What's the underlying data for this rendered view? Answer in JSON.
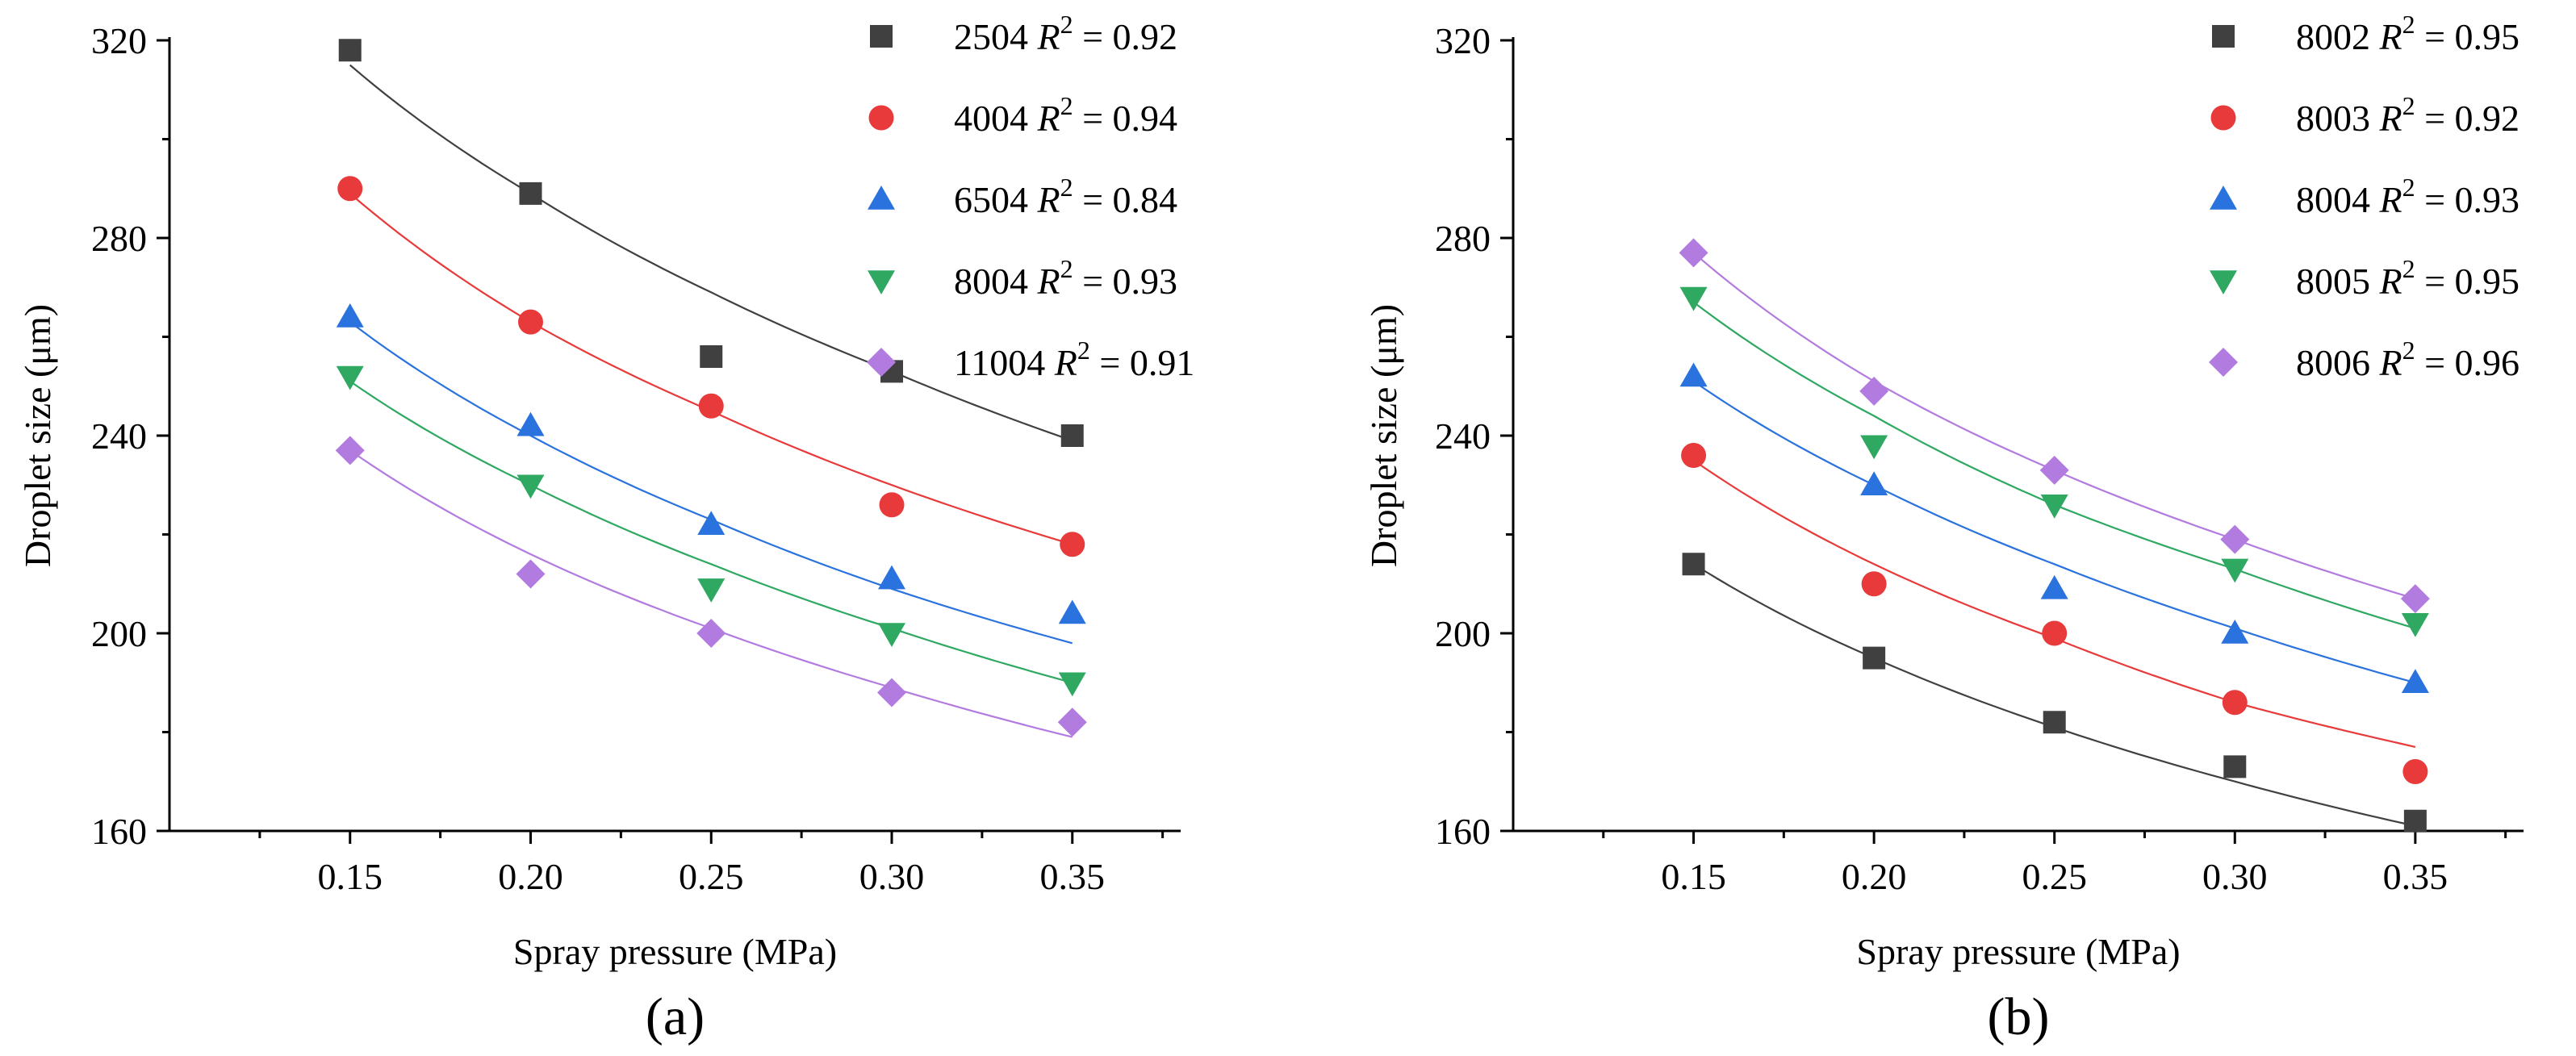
{
  "chart_data": [
    {
      "type": "scatter",
      "panel_label": "(a)",
      "xlabel": "Spray pressure (MPa)",
      "ylabel": "Droplet size  (μm)",
      "xlim": [
        0.1,
        0.38
      ],
      "ylim": [
        160,
        320
      ],
      "xticks": [
        0.15,
        0.2,
        0.25,
        0.3,
        0.35
      ],
      "xtick_labels": [
        "0.15",
        "0.20",
        "0.25",
        "0.30",
        "0.35"
      ],
      "yticks": [
        160,
        200,
        240,
        280,
        320
      ],
      "ytick_labels": [
        "160",
        "200",
        "240",
        "280",
        "320"
      ],
      "legend_position": "top-right",
      "x": [
        0.15,
        0.2,
        0.25,
        0.3,
        0.35
      ],
      "series": [
        {
          "name": "2504",
          "r2_text": " = 0.92",
          "marker": "square",
          "color": "#404040",
          "values": [
            318,
            289,
            256,
            253,
            240
          ],
          "fit": [
            315,
            289,
            269,
            253,
            239
          ]
        },
        {
          "name": "4004",
          "r2_text": " = 0.94",
          "marker": "circle",
          "color": "#e83a3a",
          "values": [
            290,
            263,
            246,
            226,
            218
          ],
          "fit": [
            289,
            263,
            245,
            230,
            218
          ]
        },
        {
          "name": "6504",
          "r2_text": " = 0.84",
          "marker": "triangle-up",
          "color": "#2a72dd",
          "values": [
            264,
            242,
            222,
            211,
            204
          ],
          "fit": [
            263,
            240,
            223,
            209,
            198
          ]
        },
        {
          "name": "8004",
          "r2_text": " = 0.93",
          "marker": "triangle-down",
          "color": "#2fa862",
          "values": [
            252,
            230,
            209,
            200,
            190
          ],
          "fit": [
            251,
            230,
            214,
            201,
            190
          ]
        },
        {
          "name": "11004",
          "r2_text": " = 0.91",
          "marker": "diamond",
          "color": "#b27be0",
          "values": [
            237,
            212,
            200,
            188,
            182
          ],
          "fit": [
            237,
            216,
            201,
            189,
            179
          ]
        }
      ]
    },
    {
      "type": "scatter",
      "panel_label": "(b)",
      "xlabel": "Spray pressure (MPa)",
      "ylabel": "Droplet size  (μm)",
      "xlim": [
        0.1,
        0.38
      ],
      "ylim": [
        160,
        320
      ],
      "xticks": [
        0.15,
        0.2,
        0.25,
        0.3,
        0.35
      ],
      "xtick_labels": [
        "0.15",
        "0.20",
        "0.25",
        "0.30",
        "0.35"
      ],
      "yticks": [
        160,
        200,
        240,
        280,
        320
      ],
      "ytick_labels": [
        "160",
        "200",
        "240",
        "280",
        "320"
      ],
      "legend_position": "top-right",
      "x": [
        0.15,
        0.2,
        0.25,
        0.3,
        0.35
      ],
      "series": [
        {
          "name": "8002",
          "r2_text": " = 0.95",
          "marker": "square",
          "color": "#404040",
          "values": [
            214,
            195,
            182,
            173,
            162
          ],
          "fit": [
            214,
            195,
            181,
            170,
            161
          ]
        },
        {
          "name": "8003",
          "r2_text": " = 0.92",
          "marker": "circle",
          "color": "#e83a3a",
          "values": [
            236,
            210,
            200,
            186,
            172
          ],
          "fit": [
            235,
            214,
            199,
            186,
            177
          ]
        },
        {
          "name": "8004",
          "r2_text": " = 0.93",
          "marker": "triangle-up",
          "color": "#2a72dd",
          "values": [
            252,
            230,
            209,
            200,
            190
          ],
          "fit": [
            251,
            230,
            214,
            201,
            190
          ]
        },
        {
          "name": "8005",
          "r2_text": " = 0.95",
          "marker": "triangle-down",
          "color": "#2fa862",
          "values": [
            268,
            238,
            226,
            213,
            202
          ],
          "fit": [
            267,
            244,
            226,
            213,
            201
          ]
        },
        {
          "name": "8006",
          "r2_text": " = 0.96",
          "marker": "diamond",
          "color": "#b27be0",
          "values": [
            277,
            249,
            233,
            219,
            207
          ],
          "fit": [
            277,
            251,
            233,
            219,
            207
          ]
        }
      ]
    }
  ]
}
